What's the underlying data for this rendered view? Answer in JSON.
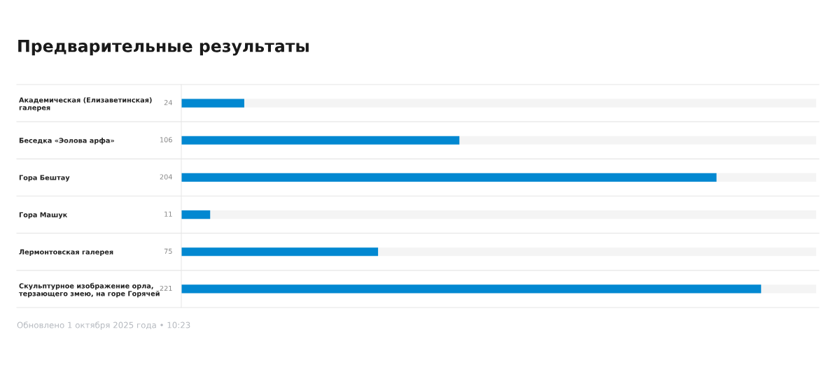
{
  "chart_data": {
    "type": "bar",
    "orientation": "horizontal",
    "title": "Предварительные результаты",
    "categories": [
      "Академическая (Елизаветинская)\nгалерея",
      "Беседка «Эолова арфа»",
      "Гора Бештау",
      "Гора Машук",
      "Лермонтовская галерея",
      "Скульптурное изображение орла,\nтерзающего змею, на горе Горячей"
    ],
    "values": [
      24,
      106,
      204,
      11,
      75,
      221
    ],
    "color": "#0288d1",
    "xlim": [
      0,
      242
    ],
    "data_labels": true,
    "grid": false,
    "legend": false,
    "annotations": [
      "Обновлено 1 октября 2025 года • 10:23"
    ]
  }
}
